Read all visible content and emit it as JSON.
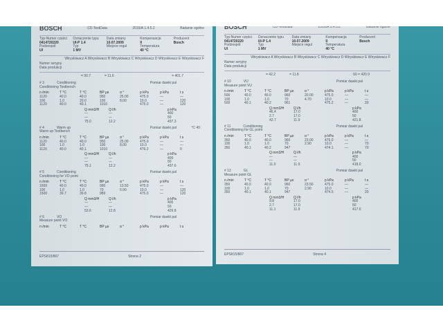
{
  "header": {
    "brand": "BOSCH",
    "app": "CD-TestData",
    "version": "2016/A 1.4.5.2",
    "test": "Badanie ogólne",
    "fields": [
      [
        "Typ-Numer części",
        "0414720220"
      ],
      [
        "Oznaczenie typu",
        "UI-P 1.4"
      ],
      [
        "Data zmiany",
        "10.07.2009"
      ],
      [
        "Kompensacja",
        "II"
      ],
      [
        "Producent",
        "Bosch"
      ],
      [
        "Podzespół",
        "UI"
      ],
      [
        "Typ",
        "1 MV"
      ],
      [
        "Miejsce regul",
        ""
      ],
      [
        "Temperatura",
        "40 °C"
      ]
    ],
    "injectors": "Wtryskiwacz A Wtryskiwacz B Wtryskiwacz C Wtryskiwacz D Wtryskiwacz E Wtryskiwacz F",
    "serial": "Numer seryjny",
    "prod": "Data produkcji"
  },
  "units1": [
    [
      "n",
      "/min"
    ],
    [
      "T",
      "°C"
    ],
    [
      "T",
      "°C"
    ],
    [
      "BP",
      "µs"
    ],
    [
      "α",
      "°"
    ],
    [
      "p",
      "kPa"
    ],
    [
      "p",
      "kPa"
    ],
    [
      "t",
      "s"
    ]
  ],
  "units2": [
    [
      "Q",
      "mm3/H"
    ],
    [
      "Q",
      "l/h"
    ],
    [
      "p",
      "kPa"
    ]
  ],
  "pomiar": "Pomiar dawki pal",
  "pages": [
    {
      "summary": [
        "= 90.7",
        "= 11.6",
        "= 401.7"
      ],
      "footer": "EPS815/807",
      "page": "Strona 2",
      "sections": [
        {
          "num": "# 3",
          "name": "Conditioning",
          "desc": "Conditioning Testbench",
          "r1": [
            [
              "1120",
              "100",
              "1120"
            ],
            [
              "40.0",
              "1.0",
              "40.0"
            ],
            [
              "40.0",
              "20.0",
              "40.1"
            ],
            [
              "950",
              "100",
              "1010"
            ],
            [
              "25.00",
              "8.00",
              ""
            ],
            [
              "475.0",
              "10.0",
              "475.0"
            ],
            [
              "—",
              "—",
              "—"
            ],
            [
              "—",
              "120",
              "120"
            ]
          ],
          "r2": [
            [
              "—",
              "—",
              "75.0"
            ],
            [
              "—",
              "—",
              "12.2"
            ],
            [
              "400",
              "50",
              "437.3"
            ]
          ]
        },
        {
          "num": "# 4",
          "name": "Warm up",
          "desc": "Warm up Testbench",
          "extra": "°C 40",
          "r1": [
            [
              "1120",
              "100",
              "1120"
            ],
            [
              "40.0",
              "1.0",
              "40.0"
            ],
            [
              "40.0",
              "1.0",
              "40.1"
            ],
            [
              "950",
              "100",
              "1010"
            ],
            [
              "25.00",
              "8.00",
              ""
            ],
            [
              "475.0",
              "10.0",
              "476.2"
            ],
            [
              "—",
              "—",
              "—"
            ],
            [
              "—",
              "—",
              "0"
            ]
          ],
          "r2": [
            [
              "—",
              "—",
              "75.1"
            ],
            [
              "—",
              "—",
              "12.2"
            ],
            [
              "400",
              "50",
              "437.6"
            ]
          ]
        },
        {
          "num": "# 5",
          "name": "Conditioning",
          "desc": "Conditioning for VO point",
          "r1": [
            [
              "1500",
              "100",
              "1500"
            ],
            [
              "40.0",
              "1.0",
              "39.7"
            ],
            [
              "40.0",
              "1.0",
              "39.8"
            ],
            [
              "990",
              "70",
              "989"
            ],
            [
              "13.50",
              "6.90",
              ""
            ],
            [
              "475.0",
              "10.0",
              "475.0"
            ],
            [
              "—",
              "—",
              "—"
            ],
            [
              "—",
              "120",
              "120"
            ]
          ],
          "r2": [
            [
              "—",
              "—",
              "53.6"
            ],
            [
              "—",
              "—",
              "12.8"
            ],
            [
              "400",
              "50",
              "429.8"
            ]
          ]
        },
        {
          "num": "# 6",
          "name": "VO",
          "desc": "Measure point VO",
          "r1": [],
          "r2": []
        }
      ]
    },
    {
      "summary": [
        "= 42.2",
        "= 11.8",
        "60 = 420.9"
      ],
      "footer": "EPS815/807",
      "page": "Strona 4",
      "sections": [
        {
          "num": "# 10",
          "name": "VU",
          "desc": "Measure point VU",
          "r1": [
            [
              "500",
              "100",
              "500"
            ],
            [
              "40.0",
              "1.0",
              "40.1"
            ],
            [
              "40.0",
              "1.0",
              "40.2"
            ],
            [
              "960",
              "70",
              "961"
            ],
            [
              "20.00",
              "4.70",
              ""
            ],
            [
              "475.0",
              "10.0",
              "475.2"
            ],
            [
              "—",
              "—",
              "—"
            ],
            [
              "—",
              "—",
              "20"
            ]
          ],
          "r2": [
            [
              "46.4",
              "2.7",
              "42.7"
            ],
            [
              "17.0",
              "17.0",
              "11.9"
            ],
            [
              "400",
              "50",
              "421.8"
            ]
          ]
        },
        {
          "num": "# 11",
          "name": "Conditioning",
          "desc": "Conditioning for GL point",
          "r1": [
            [
              "350",
              "100",
              "350"
            ],
            [
              "40.0",
              "1.0",
              "40.1"
            ],
            [
              "40.0",
              "1.0",
              "40.2"
            ],
            [
              "960",
              "70",
              "947"
            ],
            [
              "23.00",
              "2.90",
              ""
            ],
            [
              "475.0",
              "10.0",
              "474.1"
            ],
            [
              "—",
              "—",
              "—"
            ],
            [
              "—",
              "70",
              "70"
            ]
          ],
          "r2": [
            [
              "—",
              "—",
              "11.0"
            ],
            [
              "—",
              "—",
              "11.9"
            ],
            [
              "400",
              "50",
              "418.0"
            ]
          ]
        },
        {
          "num": "# 12",
          "name": "GL",
          "desc": "Measure point GL",
          "r1": [
            [
              "350",
              "100",
              "350"
            ],
            [
              "40.0",
              "1.0",
              "40.1"
            ],
            [
              "40.0",
              "1.0",
              "40.1"
            ],
            [
              "960",
              "70",
              "947"
            ],
            [
              "23.50",
              "2.90",
              ""
            ],
            [
              "475.0",
              "10.0",
              "474.5"
            ],
            [
              "—",
              "—",
              "—"
            ],
            [
              "—",
              "—",
              "20"
            ]
          ],
          "r2": [
            [
              "9.8",
              "2.7",
              "11.1"
            ],
            [
              "17.0",
              "17.0",
              "11.9"
            ],
            [
              "400",
              "50",
              "417.6"
            ]
          ]
        }
      ]
    }
  ]
}
